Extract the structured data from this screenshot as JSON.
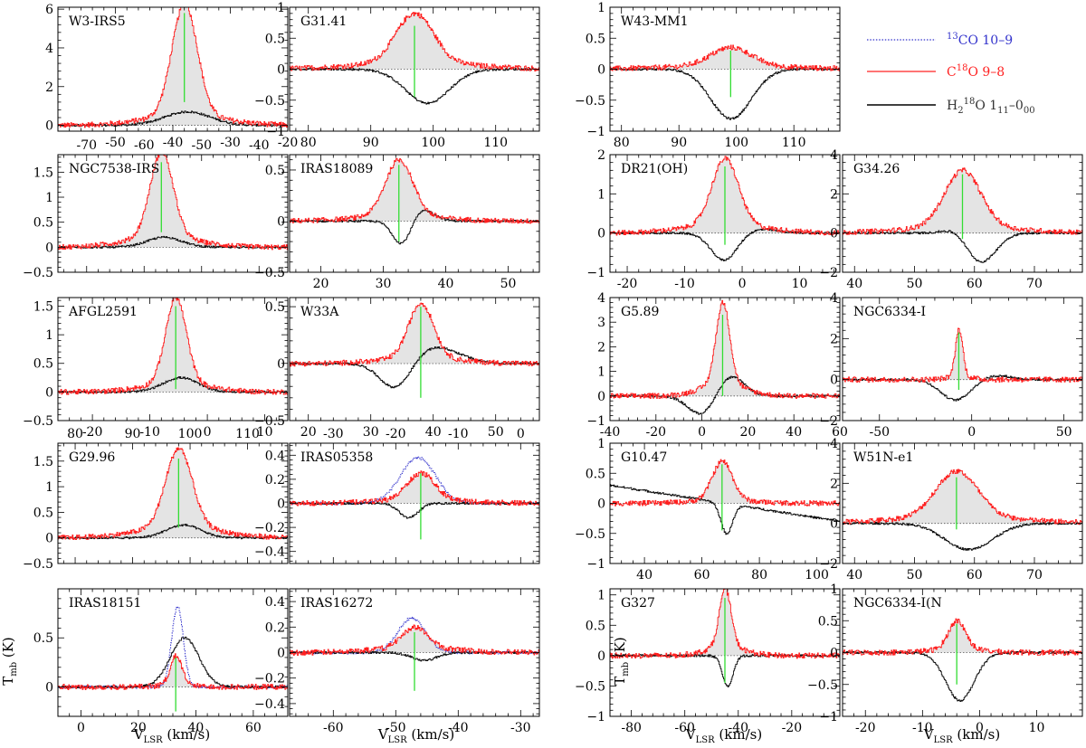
{
  "ylabel": "T",
  "ylabel_sub": "mb",
  "ylabel_unit": " (K)",
  "xlabel_main": "V",
  "xlabel_sub": "LSR",
  "xlabel_unit": " (km/s)",
  "legend": [
    {
      "pre": "",
      "sup": "13",
      "post": "CO 10–9",
      "color": "#3333cc",
      "dash": true
    },
    {
      "pre": "C",
      "sup": "18",
      "post": "O 9–8",
      "color": "#ff2020",
      "dash": false
    },
    {
      "pre": "H",
      "sub": "2",
      "sup": "18",
      "post": "O 1",
      "sub2": "11",
      "post2": "–0",
      "sub3": "00",
      "color": "#000000",
      "dash": false
    }
  ],
  "colors": {
    "h2o": "#111111",
    "c18o": "#ff2020",
    "co13": "#3333cc",
    "vline": "#33dd33",
    "fill": "#e4e4e4"
  },
  "chart_data": [
    {
      "type": "line",
      "title": "W3-IRS5",
      "xlim": [
        -60,
        -20
      ],
      "ylim": [
        -0.3,
        6.1
      ],
      "xticks": [
        -50,
        -40,
        -30,
        -20
      ],
      "yticks": [
        0,
        2,
        4,
        6
      ],
      "xaxis_side": "bottom",
      "yaxis_side": "left",
      "vlsr": -38,
      "width": 2.2,
      "c18o_peak": 5.8,
      "c18o_wing": 0.5,
      "h2o": {
        "abs": 0,
        "em": 0.7,
        "em_off": 0.5,
        "em_w": 4
      },
      "co13": null,
      "vline": [
        1.2,
        5.8
      ]
    },
    {
      "type": "line",
      "title": "G31.41",
      "xlim": [
        77,
        117
      ],
      "ylim": [
        -1,
        1
      ],
      "xticks": [
        80,
        90,
        100,
        110
      ],
      "yticks": [
        -1,
        -0.5,
        0,
        0.5,
        1
      ],
      "xaxis_side": "bottom",
      "yaxis_side": "left",
      "vlsr": 97,
      "width": 3,
      "c18o_peak": 0.8,
      "c18o_wing": 0.1,
      "h2o": {
        "abs": -0.55,
        "abs_off": 2,
        "abs_w": 3.5,
        "em": 0,
        "slope": 0
      },
      "co13": null,
      "vline": [
        -0.45,
        0.7
      ]
    },
    {
      "type": "line",
      "title": "W43-MM1",
      "xlim": [
        78,
        118
      ],
      "ylim": [
        -1,
        1
      ],
      "xticks": [
        80,
        90,
        100,
        110
      ],
      "yticks": [
        -1,
        -0.5,
        0,
        0.5,
        1
      ],
      "xaxis_side": "bottom",
      "yaxis_side": "left",
      "vlsr": 99,
      "width": 3.5,
      "c18o_peak": 0.3,
      "c18o_wing": 0.05,
      "h2o": {
        "abs": -0.8,
        "abs_off": 0,
        "abs_w": 3.5,
        "em": 0,
        "slope": 0
      },
      "co13": null,
      "vline": [
        -0.45,
        0.3
      ]
    },
    {
      "type": "line",
      "title": "NGC7538-IRS",
      "xlim": [
        -75,
        -35
      ],
      "ylim": [
        -0.5,
        1.85
      ],
      "xticks": [
        -70,
        -60,
        -50,
        -40
      ],
      "yticks": [
        -0.5,
        0,
        0.5,
        1,
        1.5
      ],
      "xaxis_side": "top",
      "yaxis_side": "left",
      "vlsr": -57,
      "width": 2,
      "c18o_peak": 1.7,
      "c18o_wing": 0.2,
      "h2o": {
        "abs": 0,
        "em": 0.2,
        "em_off": 0.5,
        "em_w": 3
      },
      "co13": null,
      "vline": [
        0.3,
        1.7
      ]
    },
    {
      "type": "line",
      "title": "IRAS18089",
      "xlim": [
        15,
        55
      ],
      "ylim": [
        -0.5,
        0.65
      ],
      "xticks": [
        20,
        30,
        40,
        50
      ],
      "yticks": [
        -0.5,
        0,
        0.5
      ],
      "xaxis_side": "bottom",
      "yaxis_side": "left",
      "vlsr": 32.5,
      "width": 2.2,
      "c18o_peak": 0.55,
      "c18o_wing": 0.05,
      "h2o": {
        "abs": -0.25,
        "abs_off": 0.5,
        "abs_w": 1.5,
        "em": 0.12,
        "em_off": 3.5,
        "em_w": 2
      },
      "co13": null,
      "vline": [
        -0.2,
        0.55
      ]
    },
    {
      "type": "line",
      "title": "DR21(OH)",
      "xlim": [
        -23,
        17
      ],
      "ylim": [
        -1,
        2
      ],
      "xticks": [
        -20,
        -10,
        0,
        10
      ],
      "yticks": [
        -1,
        0,
        1,
        2
      ],
      "xaxis_side": "bottom",
      "yaxis_side": "left",
      "vlsr": -3,
      "width": 2.3,
      "c18o_peak": 1.7,
      "c18o_wing": 0.2,
      "h2o": {
        "abs": -0.7,
        "abs_off": -0.2,
        "abs_w": 2.3,
        "em": 0.1,
        "em_off": 6,
        "em_w": 3
      },
      "co13": null,
      "vline": [
        -0.3,
        1.7
      ]
    },
    {
      "type": "line",
      "title": "G34.26",
      "xlim": [
        38,
        78
      ],
      "ylim": [
        -2,
        4
      ],
      "xticks": [
        40,
        50,
        60,
        70
      ],
      "yticks": [
        -2,
        0,
        2,
        4
      ],
      "xaxis_side": "bottom",
      "yaxis_side": "left",
      "vlsr": 58,
      "width": 3,
      "c18o_peak": 2.9,
      "c18o_wing": 0.3,
      "h2o": {
        "abs": -1.5,
        "abs_off": 3,
        "abs_w": 2.5,
        "em": 0.3,
        "em_off": -1,
        "em_w": 2
      },
      "co13": null,
      "vline": [
        -0.3,
        3
      ]
    },
    {
      "type": "line",
      "title": "AFGL2591",
      "xlim": [
        -26,
        14
      ],
      "ylim": [
        -0.5,
        1.65
      ],
      "xticks": [
        -20,
        -10,
        0,
        10
      ],
      "yticks": [
        -0.5,
        0,
        0.5,
        1,
        1.5
      ],
      "xaxis_side": "bottom",
      "yaxis_side": "left",
      "vlsr": -5.5,
      "width": 1.8,
      "c18o_peak": 1.5,
      "c18o_wing": 0.15,
      "h2o": {
        "abs": 0,
        "em": 0.25,
        "em_off": 0.8,
        "em_w": 3
      },
      "co13": null,
      "vline": [
        0.05,
        1.5
      ]
    },
    {
      "type": "line",
      "title": "W33A",
      "xlim": [
        17,
        57
      ],
      "ylim": [
        -0.5,
        0.58
      ],
      "xticks": [
        20,
        30,
        40,
        50
      ],
      "yticks": [
        -0.5,
        0,
        0.5
      ],
      "xaxis_side": "bottom",
      "yaxis_side": "left",
      "vlsr": 38,
      "width": 2,
      "c18o_peak": 0.48,
      "c18o_wing": 0.05,
      "h2o": {
        "abs": -0.25,
        "abs_off": -4,
        "abs_w": 2.5,
        "em": 0.15,
        "em_off": 2,
        "em_w": 4
      },
      "co13": null,
      "vline": [
        -0.3,
        0.5
      ]
    },
    {
      "type": "line",
      "title": "G5.89",
      "xlim": [
        -40,
        60
      ],
      "ylim": [
        -1,
        4
      ],
      "xticks": [
        -40,
        -20,
        0,
        20,
        40,
        60
      ],
      "yticks": [
        -1,
        0,
        1,
        2,
        3,
        4
      ],
      "xaxis_side": "bottom",
      "yaxis_side": "left",
      "vlsr": 9,
      "width": 3,
      "c18o_peak": 3.3,
      "c18o_wing": 0.5,
      "h2o": {
        "abs": -0.8,
        "abs_off": -9,
        "abs_w": 6,
        "em": 0.85,
        "em_off": 3,
        "em_w": 6
      },
      "co13": null,
      "vline": [
        0,
        3.3
      ]
    },
    {
      "type": "line",
      "title": "NGC6334-I",
      "xlim": [
        -70,
        60
      ],
      "ylim": [
        -2,
        4
      ],
      "xticks": [
        -50,
        0,
        50
      ],
      "yticks": [
        -2,
        0,
        2,
        4
      ],
      "xaxis_side": "bottom",
      "yaxis_side": "left",
      "vlsr": -7,
      "width": 2,
      "c18o_peak": 2.3,
      "c18o_wing": 0.15,
      "h2o": {
        "abs": -1,
        "abs_off": -2,
        "abs_w": 8,
        "em": 0.2,
        "em_off": 20,
        "em_w": 8
      },
      "co13": null,
      "vline": [
        -0.5,
        2.3
      ]
    },
    {
      "type": "line",
      "title": "G29.96",
      "xlim": [
        77,
        117
      ],
      "ylim": [
        -0.5,
        1.85
      ],
      "xticks": [
        80,
        90,
        100,
        110
      ],
      "yticks": [
        -0.5,
        0,
        0.5,
        1,
        1.5
      ],
      "xaxis_side": "top",
      "yaxis_side": "left",
      "vlsr": 98,
      "width": 2.3,
      "c18o_peak": 1.55,
      "c18o_wing": 0.2,
      "h2o": {
        "abs": 0,
        "em": 0.25,
        "em_off": 0.8,
        "em_w": 3
      },
      "co13": null,
      "vline": [
        0.2,
        1.55
      ]
    },
    {
      "type": "line",
      "title": "IRAS05358",
      "xlim": [
        -37,
        3
      ],
      "ylim": [
        -0.5,
        0.5
      ],
      "xticks": [
        -30,
        -20,
        -10,
        0
      ],
      "yticks": [
        -0.4,
        -0.2,
        0,
        0.2,
        0.4
      ],
      "xaxis_side": "top",
      "yaxis_side": "left",
      "vlsr": -16,
      "width": 2.2,
      "c18o_peak": 0.22,
      "c18o_wing": 0.03,
      "h2o": {
        "abs": -0.12,
        "abs_off": -2,
        "abs_w": 1.5,
        "em": 0,
        "slope": 0
      },
      "co13": {
        "peak": 0.38,
        "width": 2.8,
        "off": -0.5
      },
      "vline": [
        -0.3,
        0.25
      ]
    },
    {
      "type": "line",
      "title": "G10.47",
      "xlim": [
        28,
        108
      ],
      "ylim": [
        -1,
        1
      ],
      "xticks": [
        40,
        60,
        80,
        100
      ],
      "yticks": [
        -1,
        -0.5,
        0,
        0.5,
        1
      ],
      "xaxis_side": "bottom",
      "yaxis_side": "left",
      "vlsr": 67,
      "width": 3.5,
      "c18o_peak": 0.65,
      "c18o_wing": 0.05,
      "h2o": {
        "abs": -0.5,
        "abs_off": 1.5,
        "abs_w": 2,
        "em": 0,
        "slope": -0.3
      },
      "co13": null,
      "vline": [
        -0.45,
        0.65
      ]
    },
    {
      "type": "line",
      "title": "W51N-e1",
      "xlim": [
        38,
        78
      ],
      "ylim": [
        -2,
        4
      ],
      "xticks": [
        40,
        50,
        60,
        70
      ],
      "yticks": [
        -2,
        0,
        2,
        4
      ],
      "xaxis_side": "bottom",
      "yaxis_side": "left",
      "vlsr": 57,
      "width": 3.5,
      "c18o_peak": 2.3,
      "c18o_wing": 0.3,
      "h2o": {
        "abs": -1.3,
        "abs_off": 2,
        "abs_w": 4,
        "em": 0,
        "slope": 0
      },
      "co13": null,
      "vline": [
        -0.3,
        2.3
      ]
    },
    {
      "type": "line",
      "title": "IRAS18151",
      "xlim": [
        -8,
        72
      ],
      "ylim": [
        -0.3,
        1.0
      ],
      "xticks": [
        0,
        20,
        40,
        60
      ],
      "yticks": [
        0,
        0.5
      ],
      "xaxis_side": "bottom",
      "yaxis_side": "left",
      "vlsr": 33,
      "width": 2,
      "c18o_peak": 0.3,
      "c18o_wing": 0.02,
      "h2o": {
        "abs": 0,
        "em": 0.5,
        "em_off": 3,
        "em_w": 5
      },
      "co13": {
        "peak": 0.82,
        "width": 2,
        "off": 0.5
      },
      "vline": [
        -0.25,
        0.3
      ]
    },
    {
      "type": "line",
      "title": "IRAS16272",
      "xlim": [
        -67,
        -27
      ],
      "ylim": [
        -0.5,
        0.5
      ],
      "xticks": [
        -60,
        -50,
        -40,
        -30
      ],
      "yticks": [
        -0.4,
        -0.2,
        0,
        0.2,
        0.4
      ],
      "xaxis_side": "bottom",
      "yaxis_side": "left",
      "vlsr": -47,
      "width": 2,
      "c18o_peak": 0.16,
      "c18o_wing": 0.04,
      "h2o": {
        "abs": -0.06,
        "abs_off": 1.5,
        "abs_w": 2,
        "em": 0,
        "slope": 0
      },
      "co13": {
        "peak": 0.27,
        "width": 2.2,
        "off": -0.5
      },
      "vline": [
        -0.3,
        0.16
      ]
    },
    {
      "type": "line",
      "title": "G327",
      "xlim": [
        -88,
        -2
      ],
      "ylim": [
        -1,
        1.1
      ],
      "xticks": [
        -80,
        -60,
        -40,
        -20
      ],
      "yticks": [
        -1,
        -0.5,
        0,
        0.5,
        1
      ],
      "xaxis_side": "bottom",
      "yaxis_side": "left",
      "vlsr": -45,
      "width": 2.2,
      "c18o_peak": 0.95,
      "c18o_wing": 0.15,
      "h2o": {
        "abs": -0.5,
        "abs_off": 1,
        "abs_w": 2,
        "em": 0,
        "slope": 0
      },
      "co13": null,
      "vline": [
        -0.45,
        0.95
      ]
    },
    {
      "type": "line",
      "title": "NGC6334-I(N",
      "xlim": [
        -24,
        18
      ],
      "ylim": [
        -1,
        1
      ],
      "xticks": [
        -20,
        -10,
        0,
        10
      ],
      "yticks": [
        -1,
        -0.5,
        0,
        0.5,
        1
      ],
      "xaxis_side": "bottom",
      "yaxis_side": "left",
      "vlsr": -4,
      "width": 1.5,
      "c18o_peak": 0.45,
      "c18o_wing": 0.05,
      "h2o": {
        "abs": -0.75,
        "abs_off": 0.5,
        "abs_w": 2.5,
        "em": 0,
        "slope": 0
      },
      "co13": null,
      "vline": [
        -0.5,
        0.45
      ]
    }
  ]
}
